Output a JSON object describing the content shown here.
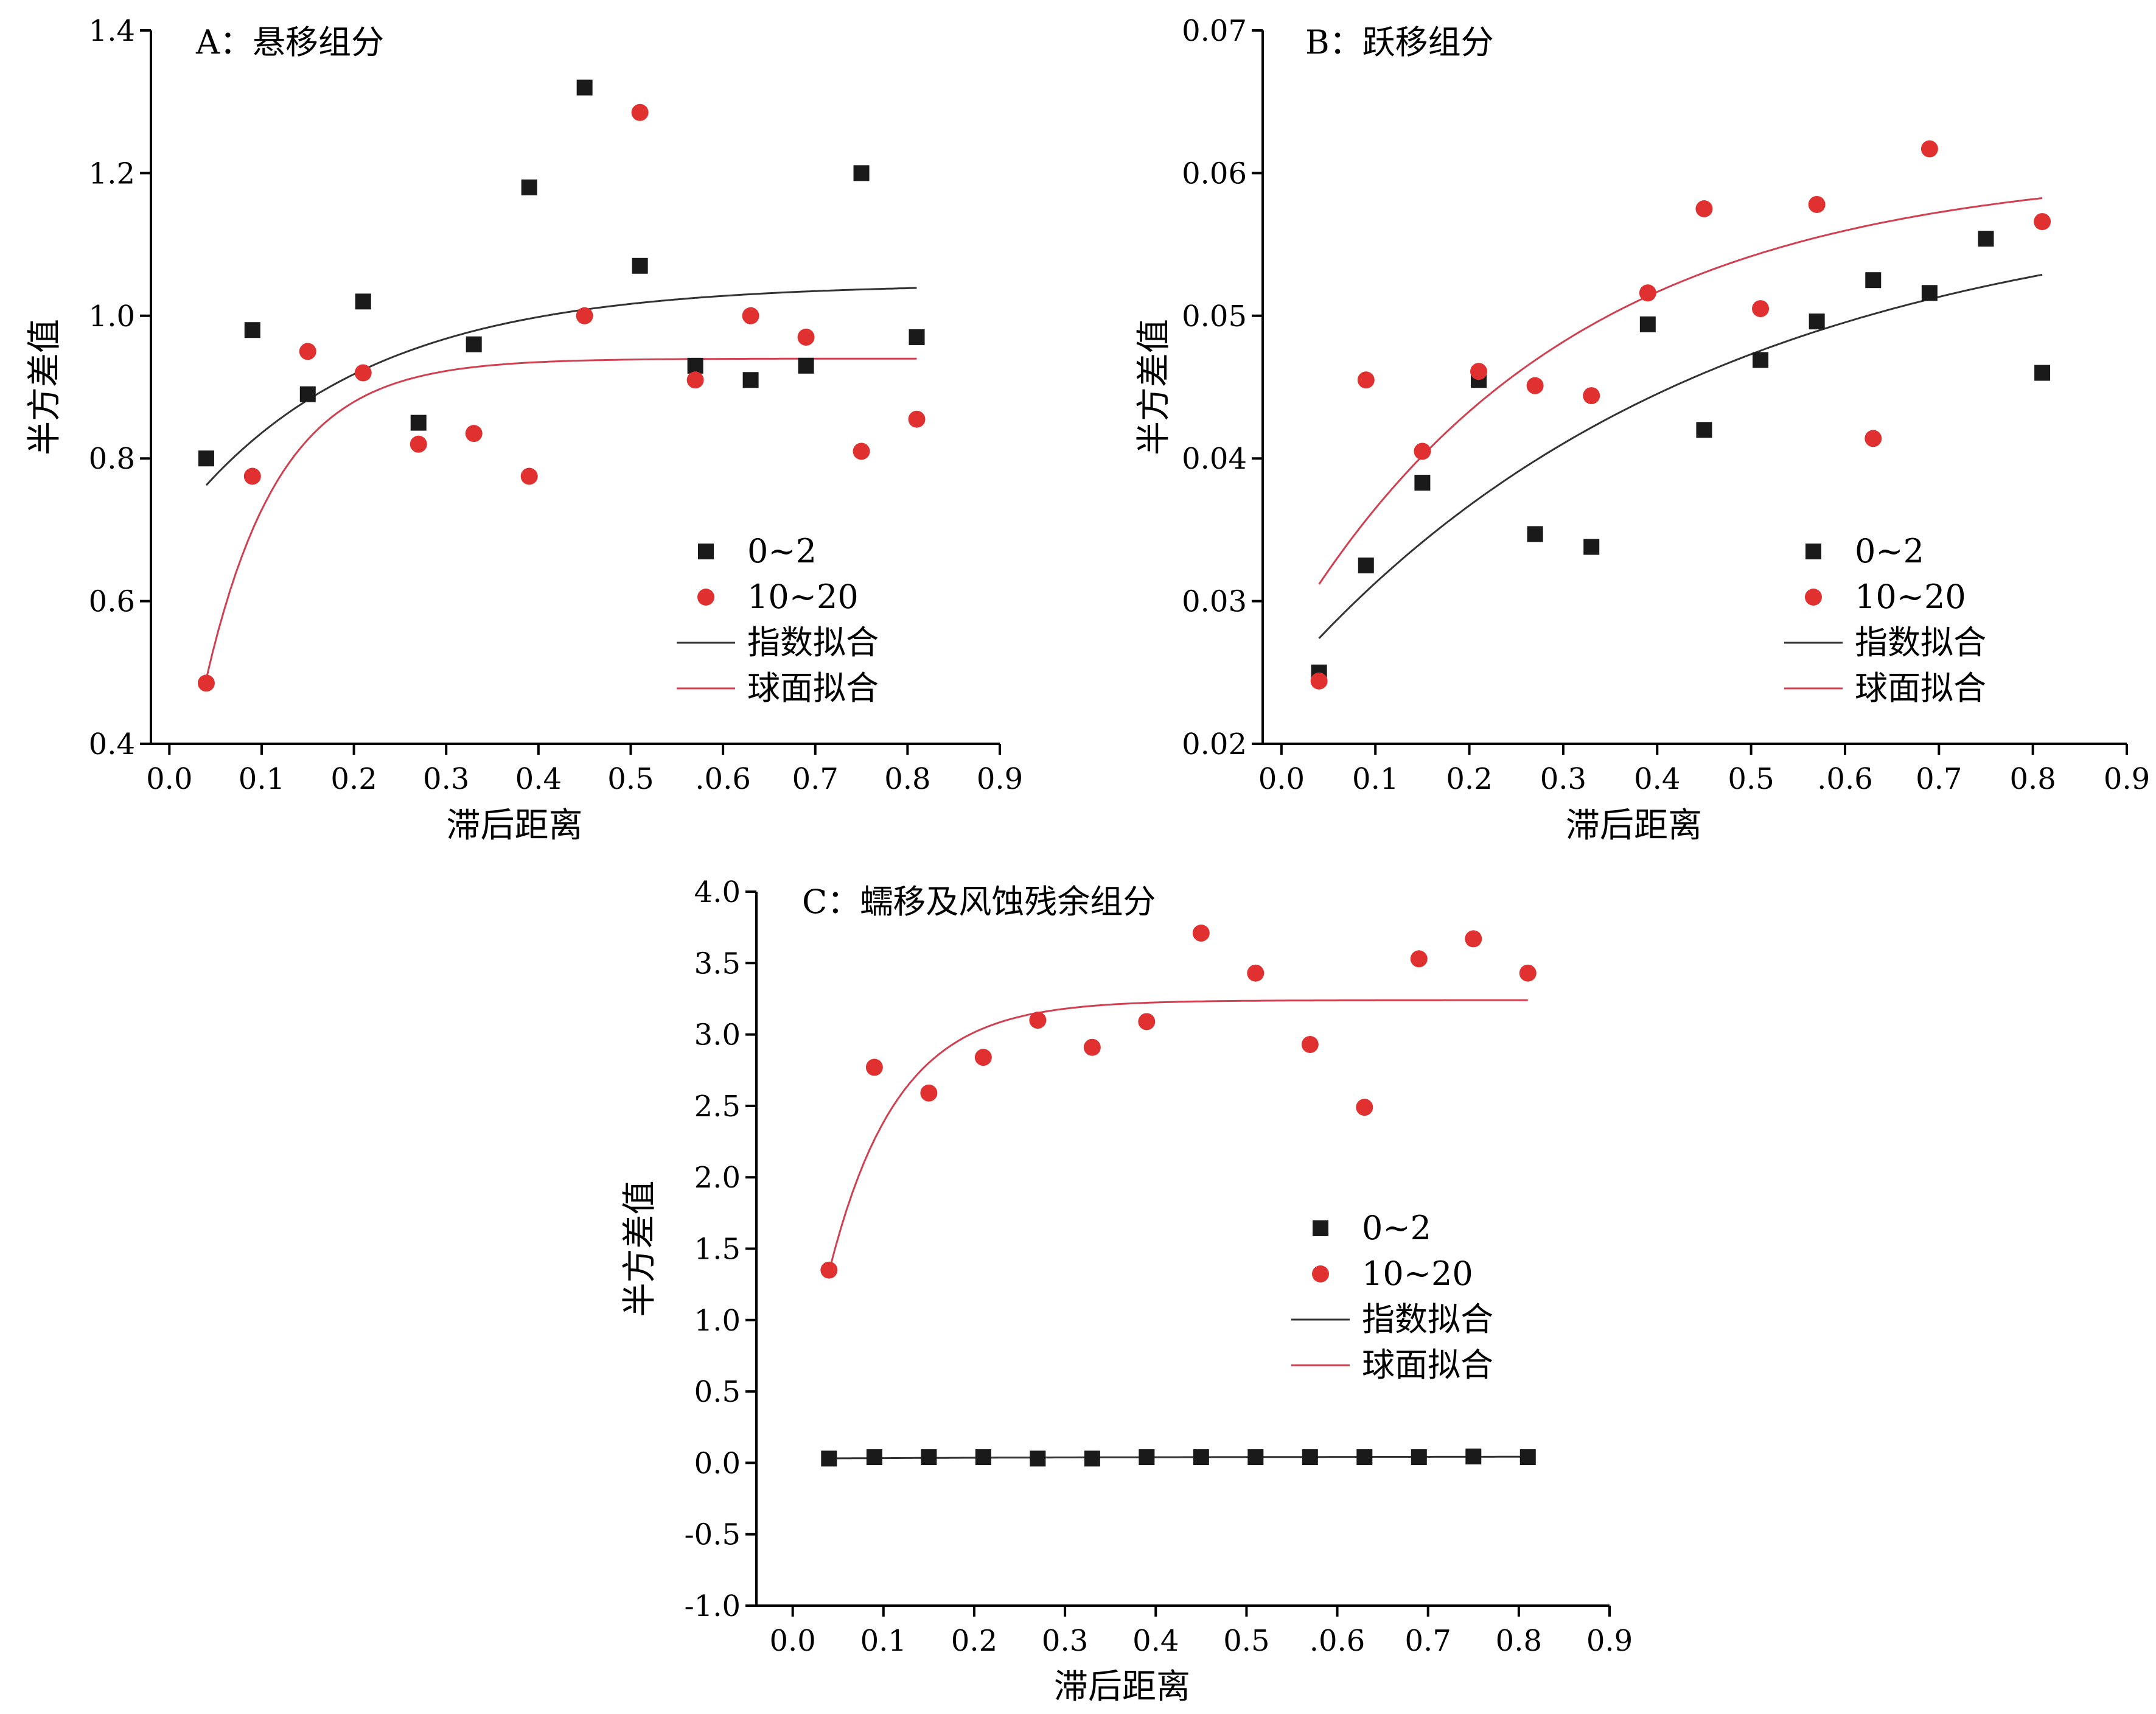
{
  "chart_data": [
    {
      "id": "A",
      "type": "scatter",
      "title": "A：悬移组分",
      "xlabel": "滞后距离",
      "ylabel": "半方差值",
      "xlim": [
        -0.02,
        0.9
      ],
      "ylim": [
        0.4,
        1.4
      ],
      "xticks": [
        0.0,
        0.1,
        0.2,
        0.3,
        0.4,
        0.5,
        0.6,
        0.7,
        0.8,
        0.9
      ],
      "xtick_labels": [
        "0.0",
        "0.1",
        "0.2",
        "0.3",
        "0.4",
        "0.5",
        ".0.6",
        "0.7",
        "0.8",
        "0.9"
      ],
      "yticks": [
        0.4,
        0.6,
        0.8,
        1.0,
        1.2,
        1.4
      ],
      "ytick_labels": [
        "0.4",
        "0.6",
        "0.8",
        "1.0",
        "1.2",
        "1.4"
      ],
      "legend": {
        "placement": "lower-right",
        "entries": [
          "0~2",
          "10~20",
          "指数拟合",
          "球面拟合"
        ]
      },
      "grid": false,
      "x": [
        0.04,
        0.09,
        0.15,
        0.21,
        0.27,
        0.33,
        0.39,
        0.45,
        0.51,
        0.57,
        0.63,
        0.69,
        0.75,
        0.81
      ],
      "series": [
        {
          "name": "0~2",
          "marker": "square",
          "color": "#1a1a1a",
          "values": [
            0.8,
            0.98,
            0.89,
            1.02,
            0.85,
            0.96,
            1.18,
            1.32,
            1.07,
            0.93,
            0.91,
            0.93,
            1.2,
            0.97
          ]
        },
        {
          "name": "10~20",
          "marker": "circle",
          "color": "#e03030",
          "values": [
            0.485,
            0.775,
            0.95,
            0.92,
            0.82,
            0.835,
            0.775,
            1.0,
            1.285,
            0.91,
            1.0,
            0.97,
            0.81,
            0.855
          ]
        }
      ],
      "fits": [
        {
          "name": "指数拟合",
          "color": "#333333",
          "model": "exponential",
          "nugget": 0.7,
          "sill": 1.045,
          "range": 0.2,
          "x_from": 0.04,
          "x_to": 0.81
        },
        {
          "name": "球面拟合",
          "color": "#d04050",
          "model": "exponential",
          "nugget": 0.2,
          "sill": 0.94,
          "range": 0.08,
          "x_from": 0.04,
          "x_to": 0.81
        }
      ]
    },
    {
      "id": "B",
      "type": "scatter",
      "title": "B：跃移组分",
      "xlabel": "滞后距离",
      "ylabel": "半方差值",
      "xlim": [
        -0.02,
        0.9
      ],
      "ylim": [
        0.02,
        0.07
      ],
      "xticks": [
        0.0,
        0.1,
        0.2,
        0.3,
        0.4,
        0.5,
        0.6,
        0.7,
        0.8,
        0.9
      ],
      "xtick_labels": [
        "0.0",
        "0.1",
        "0.2",
        "0.3",
        "0.4",
        "0.5",
        ".0.6",
        "0.7",
        "0.8",
        "0.9"
      ],
      "yticks": [
        0.02,
        0.03,
        0.04,
        0.05,
        0.06,
        0.07
      ],
      "ytick_labels": [
        "0.02",
        "0.03",
        "0.04",
        "0.05",
        "0.06",
        "0.07"
      ],
      "legend": {
        "placement": "lower-right",
        "entries": [
          "0~2",
          "10~20",
          "指数拟合",
          "球面拟合"
        ]
      },
      "grid": false,
      "x": [
        0.04,
        0.09,
        0.15,
        0.21,
        0.27,
        0.33,
        0.39,
        0.45,
        0.51,
        0.57,
        0.63,
        0.69,
        0.75,
        0.81
      ],
      "series": [
        {
          "name": "0~2",
          "marker": "square",
          "color": "#1a1a1a",
          "values": [
            0.025,
            0.0325,
            0.0383,
            0.0455,
            0.0347,
            0.0338,
            0.0494,
            0.042,
            0.0469,
            0.0496,
            0.0525,
            0.0516,
            0.0554,
            0.046
          ]
        },
        {
          "name": "10~20",
          "marker": "circle",
          "color": "#e03030",
          "values": [
            0.0244,
            0.0455,
            0.0405,
            0.0461,
            0.0451,
            0.0444,
            0.0516,
            0.0575,
            0.0505,
            0.0578,
            0.0414,
            0.0617,
            null,
            0.0566
          ]
        }
      ],
      "fits": [
        {
          "name": "指数拟合",
          "color": "#333333",
          "model": "exponential",
          "nugget": 0.0245,
          "sill": 0.0585,
          "range": 0.45,
          "x_from": 0.04,
          "x_to": 0.81
        },
        {
          "name": "球面拟合",
          "color": "#d04050",
          "model": "exponential",
          "nugget": 0.027,
          "sill": 0.0605,
          "range": 0.3,
          "x_from": 0.04,
          "x_to": 0.81
        }
      ]
    },
    {
      "id": "C",
      "type": "scatter",
      "title": "C：蠕移及风蚀残余组分",
      "xlabel": "滞后距离",
      "ylabel": "半方差值",
      "xlim": [
        -0.04,
        0.9
      ],
      "ylim": [
        -1.0,
        4.0
      ],
      "xticks": [
        0.0,
        0.1,
        0.2,
        0.3,
        0.4,
        0.5,
        0.6,
        0.7,
        0.8,
        0.9
      ],
      "xtick_labels": [
        "0.0",
        "0.1",
        "0.2",
        "0.3",
        "0.4",
        "0.5",
        ".0.6",
        "0.7",
        "0.8",
        "0.9"
      ],
      "yticks": [
        -1.0,
        -0.5,
        0.0,
        0.5,
        1.0,
        1.5,
        2.0,
        2.5,
        3.0,
        3.5,
        4.0
      ],
      "ytick_labels": [
        "-1.0",
        "-0.5",
        "0.0",
        "0.5",
        "1.0",
        "1.5",
        "2.0",
        "2.5",
        "3.0",
        "3.5",
        "4.0"
      ],
      "legend": {
        "placement": "center-right",
        "entries": [
          "0~2",
          "10~20",
          "指数拟合",
          "球面拟合"
        ]
      },
      "grid": false,
      "x": [
        0.04,
        0.09,
        0.15,
        0.21,
        0.27,
        0.33,
        0.39,
        0.45,
        0.51,
        0.57,
        0.63,
        0.69,
        0.75,
        0.81
      ],
      "series": [
        {
          "name": "0~2",
          "marker": "square",
          "color": "#1a1a1a",
          "values": [
            0.03,
            0.04,
            0.04,
            0.04,
            0.03,
            0.03,
            0.04,
            0.04,
            0.04,
            0.04,
            0.04,
            0.04,
            0.045,
            0.04
          ]
        },
        {
          "name": "10~20",
          "marker": "circle",
          "color": "#e03030",
          "values": [
            1.35,
            2.77,
            2.59,
            2.84,
            3.1,
            2.91,
            3.09,
            3.71,
            3.43,
            2.93,
            2.49,
            3.53,
            3.67,
            3.43
          ]
        }
      ],
      "fits": [
        {
          "name": "指数拟合",
          "color": "#333333",
          "model": "exponential",
          "nugget": 0.03,
          "sill": 0.045,
          "range": 0.4,
          "x_from": 0.04,
          "x_to": 0.81
        },
        {
          "name": "球面拟合",
          "color": "#d04050",
          "model": "exponential",
          "nugget": 0.0,
          "sill": 3.24,
          "range": 0.075,
          "x_from": 0.04,
          "x_to": 0.81
        }
      ]
    }
  ]
}
